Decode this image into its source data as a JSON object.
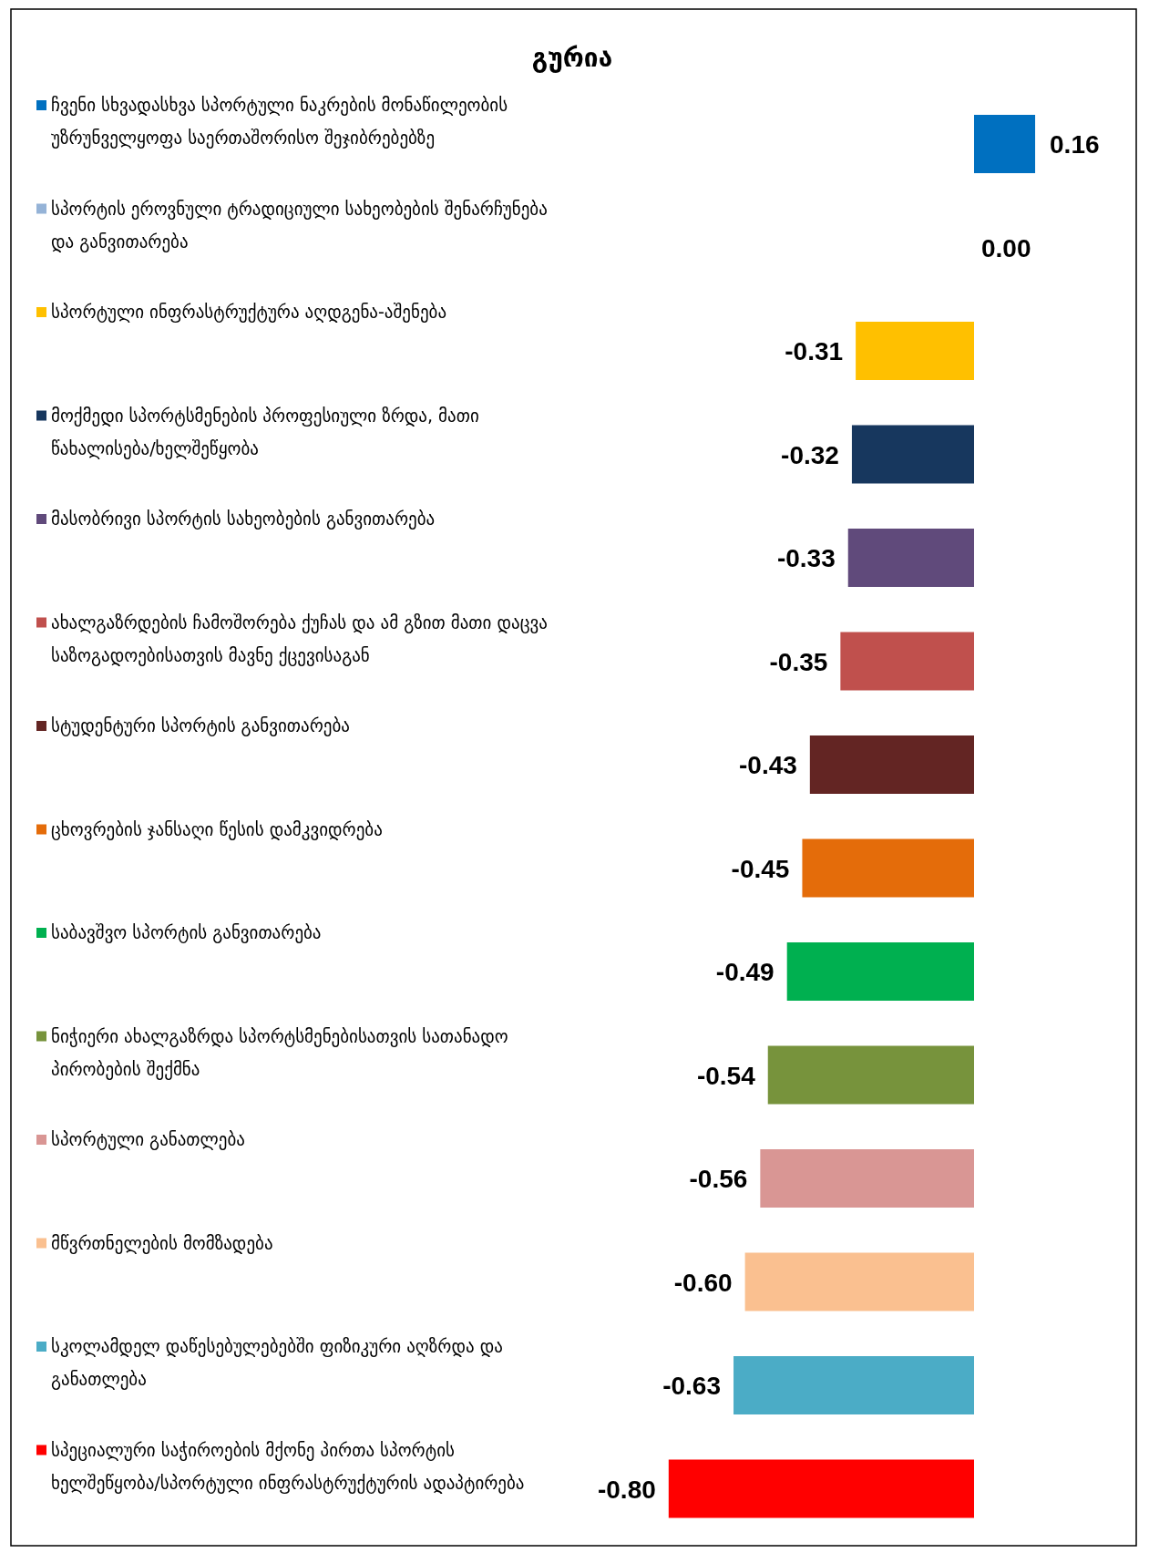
{
  "chart_data": {
    "type": "bar",
    "orientation": "horizontal",
    "title": "გურია",
    "value_labels": [
      "0.16",
      "0.00",
      "-0.31",
      "-0.32",
      "-0.33",
      "-0.35",
      "-0.43",
      "-0.45",
      "-0.49",
      "-0.54",
      "-0.56",
      "-0.60",
      "-0.63",
      "-0.80"
    ],
    "categories": [
      "ჩვენი სხვადასხვა სპორტული ნაკრების მონაწილეობის უზრუნველყოფა საერთაშორისო შეჯიბრებებზე",
      "სპორტის ეროვნული ტრადიციული სახეობების შენარჩუნება და განვითარება",
      "სპორტული ინფრასტრუქტურა აღდგენა-აშენება",
      "მოქმედი სპორტსმენების  პროფესიული ზრდა, მათი წახალისება/ხელშეწყობა",
      "მასობრივი სპორტის სახეობების განვითარება",
      "ახალგაზრდების ჩამოშორება ქუჩას და ამ გზით მათი დაცვა საზოგადოებისათვის მავნე ქცევისაგან",
      "სტუდენტური სპორტის განვითარება",
      "ცხოვრების ჯანსაღი წესის დამკვიდრება",
      "საბავშვო სპორტის განვითარება",
      "ნიჭიერი ახალგაზრდა სპორტსმენებისათვის სათანადო პირობების შექმნა",
      "სპორტული განათლება",
      "მწვრთნელების მომზადება",
      "სკოლამდელ დაწესებულებებში ფიზიკური აღზრდა და განათლება",
      "სპეციალური საჭიროების მქონე პირთა სპორტის ხელშეწყობა/სპორტული ინფრასტრუქტურის ადაპტირება"
    ],
    "values": [
      0.16,
      0.0,
      -0.31,
      -0.32,
      -0.33,
      -0.35,
      -0.43,
      -0.45,
      -0.49,
      -0.54,
      -0.56,
      -0.6,
      -0.63,
      -0.8
    ],
    "colors": [
      "#0070c0",
      "#95b3d7",
      "#ffc000",
      "#17375e",
      "#604a7b",
      "#c0504d",
      "#632523",
      "#e46c0a",
      "#00b050",
      "#77933c",
      "#d99694",
      "#fac090",
      "#4bacc6",
      "#ff0000"
    ]
  }
}
